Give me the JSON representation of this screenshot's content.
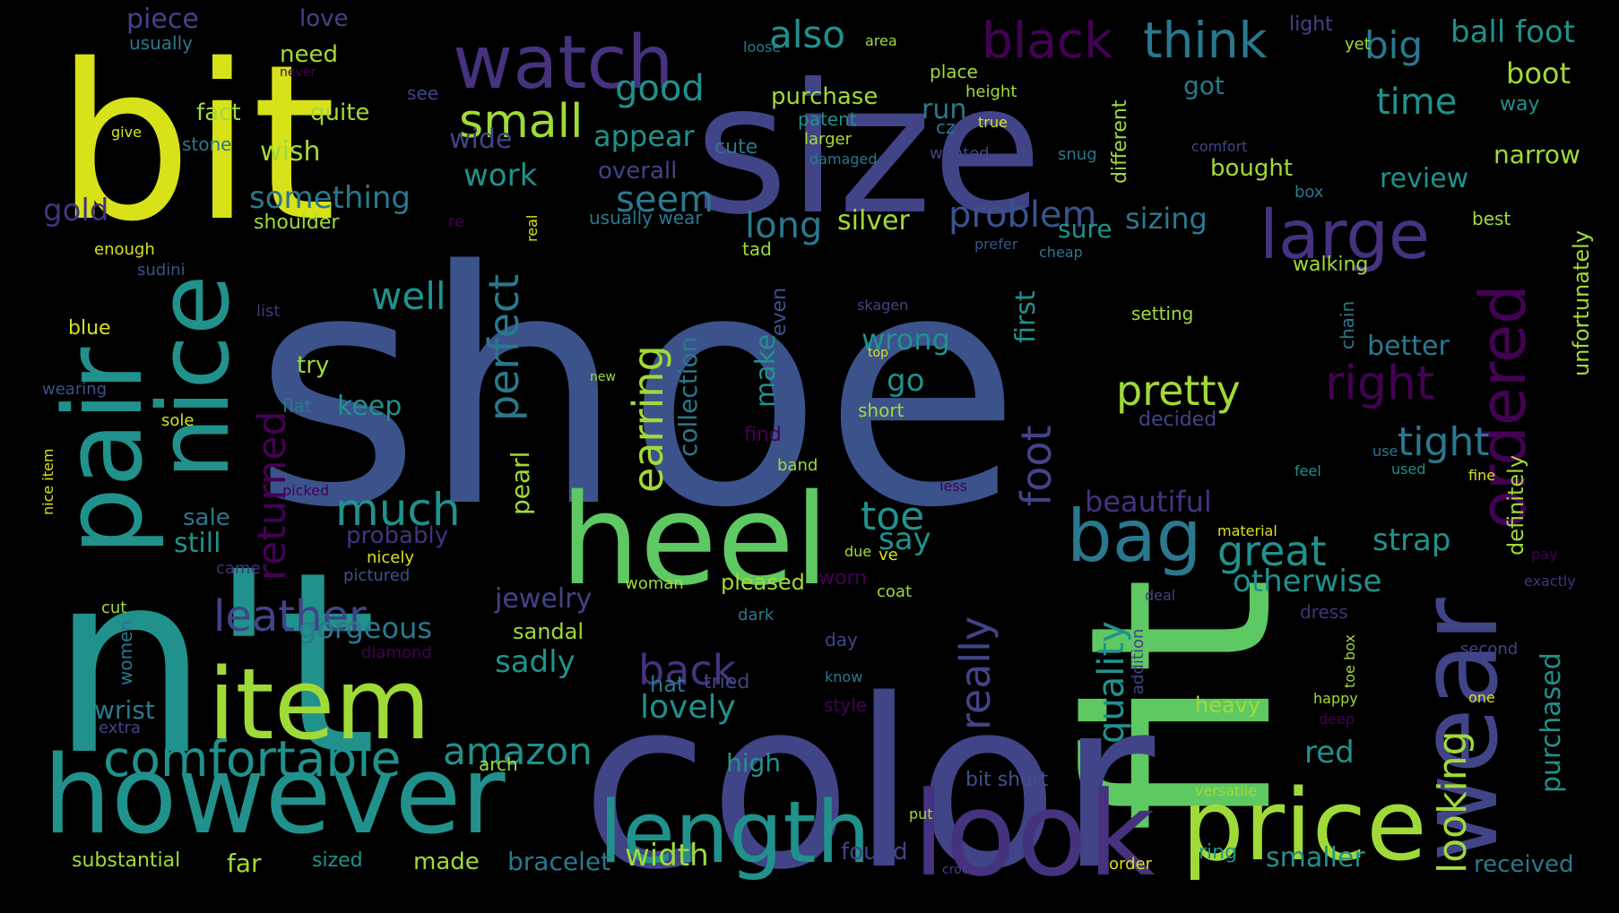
{
  "palette": {
    "yellow": "#d8e219",
    "green": "#5ec962",
    "lime": "#a0da39",
    "teal": "#21918c",
    "cyan": "#2a788e",
    "blue": "#3b528b",
    "indigo": "#414487",
    "purple": "#46327e",
    "dark_purple": "#440154",
    "background": "#000000"
  },
  "words": [
    {
      "text": "shoe"
    },
    {
      "text": "fit"
    },
    {
      "text": "color"
    },
    {
      "text": "bit"
    },
    {
      "text": "size"
    },
    {
      "text": "n't"
    },
    {
      "text": "however"
    },
    {
      "text": "look"
    },
    {
      "text": "heel"
    },
    {
      "text": "item"
    },
    {
      "text": "price"
    },
    {
      "text": "wear"
    },
    {
      "text": "length"
    },
    {
      "text": "pair"
    },
    {
      "text": "nice"
    },
    {
      "text": "watch"
    },
    {
      "text": "bag"
    },
    {
      "text": "large"
    },
    {
      "text": "ordered"
    },
    {
      "text": "black"
    },
    {
      "text": "think"
    },
    {
      "text": "comfortable"
    },
    {
      "text": "small"
    },
    {
      "text": "also"
    },
    {
      "text": "big"
    },
    {
      "text": "ball foot"
    },
    {
      "text": "boot"
    },
    {
      "text": "time"
    },
    {
      "text": "right"
    },
    {
      "text": "pretty"
    },
    {
      "text": "perfect"
    },
    {
      "text": "earring"
    },
    {
      "text": "really"
    },
    {
      "text": "foot"
    },
    {
      "text": "back"
    },
    {
      "text": "leather"
    },
    {
      "text": "much"
    },
    {
      "text": "returned"
    },
    {
      "text": "amazon"
    },
    {
      "text": "looking"
    },
    {
      "text": "quality"
    },
    {
      "text": "great"
    },
    {
      "text": "toe"
    },
    {
      "text": "tight"
    },
    {
      "text": "problem"
    },
    {
      "text": "long"
    },
    {
      "text": "seem"
    },
    {
      "text": "appear"
    },
    {
      "text": "good"
    },
    {
      "text": "piece"
    },
    {
      "text": "love"
    },
    {
      "text": "usually"
    },
    {
      "text": "need"
    },
    {
      "text": "fact"
    },
    {
      "text": "quite"
    },
    {
      "text": "wish"
    },
    {
      "text": "stone"
    },
    {
      "text": "give"
    },
    {
      "text": "never"
    },
    {
      "text": "see"
    },
    {
      "text": "gold"
    },
    {
      "text": "something"
    },
    {
      "text": "shoulder"
    },
    {
      "text": "re"
    },
    {
      "text": "enough"
    },
    {
      "text": "sudini"
    },
    {
      "text": "list"
    },
    {
      "text": "well"
    },
    {
      "text": "blue"
    },
    {
      "text": "try"
    },
    {
      "text": "wearing"
    },
    {
      "text": "flat"
    },
    {
      "text": "keep"
    },
    {
      "text": "sole"
    },
    {
      "text": "nice item"
    },
    {
      "text": "picked"
    },
    {
      "text": "sale"
    },
    {
      "text": "still"
    },
    {
      "text": "probably"
    },
    {
      "text": "nicely"
    },
    {
      "text": "came"
    },
    {
      "text": "pictured"
    },
    {
      "text": "gorgeous"
    },
    {
      "text": "cut"
    },
    {
      "text": "women"
    },
    {
      "text": "diamond"
    },
    {
      "text": "wrist"
    },
    {
      "text": "extra"
    },
    {
      "text": "arch"
    },
    {
      "text": "substantial"
    },
    {
      "text": "sized"
    },
    {
      "text": "far"
    },
    {
      "text": "made"
    },
    {
      "text": "bracelet"
    },
    {
      "text": "width"
    },
    {
      "text": "high"
    },
    {
      "text": "lovely"
    },
    {
      "text": "hat"
    },
    {
      "text": "tried"
    },
    {
      "text": "sadly"
    },
    {
      "text": "sandal"
    },
    {
      "text": "jewelry"
    },
    {
      "text": "pearl"
    },
    {
      "text": "collection"
    },
    {
      "text": "make"
    },
    {
      "text": "even"
    },
    {
      "text": "woman"
    },
    {
      "text": "pleased"
    },
    {
      "text": "worn"
    },
    {
      "text": "dark"
    },
    {
      "text": "day"
    },
    {
      "text": "know"
    },
    {
      "text": "style"
    },
    {
      "text": "found"
    },
    {
      "text": "put"
    },
    {
      "text": "croc"
    },
    {
      "text": "bit short"
    },
    {
      "text": "order"
    },
    {
      "text": "ring"
    },
    {
      "text": "smaller"
    },
    {
      "text": "received"
    },
    {
      "text": "work"
    },
    {
      "text": "overall"
    },
    {
      "text": "usually wear"
    },
    {
      "text": "wide"
    },
    {
      "text": "purchase"
    },
    {
      "text": "patent"
    },
    {
      "text": "larger"
    },
    {
      "text": "damaged"
    },
    {
      "text": "cute"
    },
    {
      "text": "loose"
    },
    {
      "text": "area"
    },
    {
      "text": "place"
    },
    {
      "text": "height"
    },
    {
      "text": "run"
    },
    {
      "text": "cz"
    },
    {
      "text": "true"
    },
    {
      "text": "wanted"
    },
    {
      "text": "snug"
    },
    {
      "text": "different"
    },
    {
      "text": "got"
    },
    {
      "text": "light"
    },
    {
      "text": "yet"
    },
    {
      "text": "way"
    },
    {
      "text": "comfort"
    },
    {
      "text": "narrow"
    },
    {
      "text": "bought"
    },
    {
      "text": "box"
    },
    {
      "text": "review"
    },
    {
      "text": "best"
    },
    {
      "text": "definitely"
    },
    {
      "text": "unfortunately"
    },
    {
      "text": "purchased"
    },
    {
      "text": "silver"
    },
    {
      "text": "sizing"
    },
    {
      "text": "sure"
    },
    {
      "text": "tad"
    },
    {
      "text": "prefer"
    },
    {
      "text": "cheap"
    },
    {
      "text": "real"
    },
    {
      "text": "walking"
    },
    {
      "text": "first"
    },
    {
      "text": "chain"
    },
    {
      "text": "skagen"
    },
    {
      "text": "setting"
    },
    {
      "text": "wrong"
    },
    {
      "text": "top"
    },
    {
      "text": "new"
    },
    {
      "text": "go"
    },
    {
      "text": "better"
    },
    {
      "text": "short"
    },
    {
      "text": "decided"
    },
    {
      "text": "find"
    },
    {
      "text": "band"
    },
    {
      "text": "use"
    },
    {
      "text": "used"
    },
    {
      "text": "feel"
    },
    {
      "text": "fine"
    },
    {
      "text": "less"
    },
    {
      "text": "beautiful"
    },
    {
      "text": "say"
    },
    {
      "text": "material"
    },
    {
      "text": "strap"
    },
    {
      "text": "pay"
    },
    {
      "text": "due"
    },
    {
      "text": "ve"
    },
    {
      "text": "coat"
    },
    {
      "text": "otherwise"
    },
    {
      "text": "exactly"
    },
    {
      "text": "deal"
    },
    {
      "text": "dress"
    },
    {
      "text": "addition"
    },
    {
      "text": "toe box"
    },
    {
      "text": "second"
    },
    {
      "text": "happy"
    },
    {
      "text": "one"
    },
    {
      "text": "deep"
    },
    {
      "text": "heavy"
    },
    {
      "text": "red"
    },
    {
      "text": "versatile"
    }
  ]
}
